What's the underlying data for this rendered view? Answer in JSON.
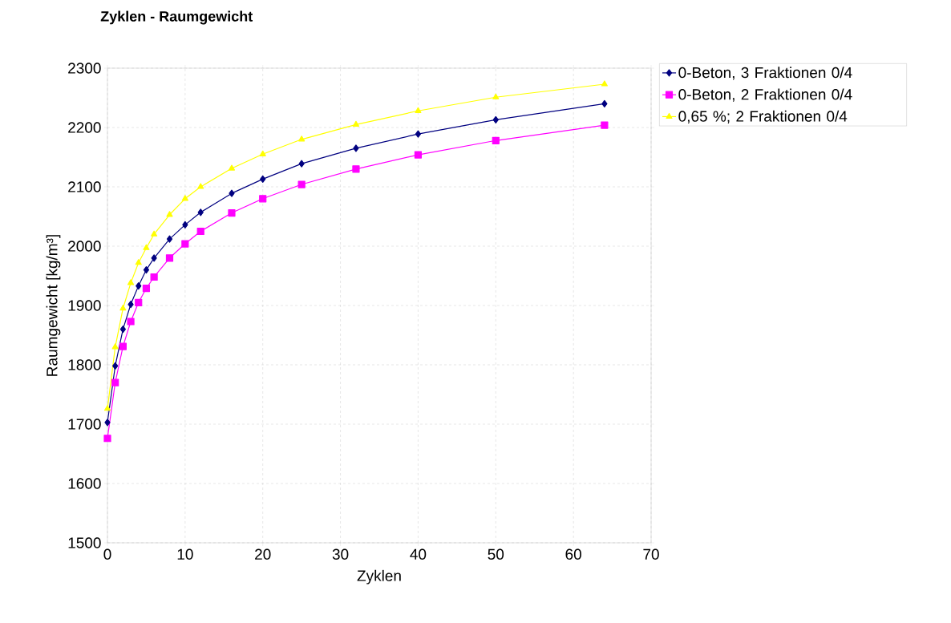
{
  "chart_data": {
    "type": "line",
    "title": "Zyklen - Raumgewicht",
    "xlabel": "Zyklen",
    "ylabel": "Raumgewicht [kg/m³]",
    "x": [
      0,
      1,
      2,
      3,
      4,
      5,
      6,
      8,
      10,
      12,
      16,
      20,
      25,
      32,
      40,
      50,
      64
    ],
    "series": [
      {
        "name": "0-Beton, 3 Fraktionen 0/4",
        "color": "#000080",
        "marker": "diamond",
        "values": [
          1703,
          1798,
          1860,
          1902,
          1933,
          1960,
          1980,
          2012,
          2036,
          2057,
          2089,
          2113,
          2139,
          2165,
          2189,
          2213,
          2240
        ]
      },
      {
        "name": "0-Beton, 2 Fraktionen 0/4",
        "color": "#ff00ff",
        "marker": "square",
        "values": [
          1676,
          1770,
          1831,
          1873,
          1905,
          1929,
          1948,
          1980,
          2004,
          2025,
          2056,
          2080,
          2104,
          2130,
          2154,
          2178,
          2204
        ]
      },
      {
        "name": "0,65 %; 2 Fraktionen 0/4",
        "color": "#ffff00",
        "marker": "triangle",
        "values": [
          1726,
          1830,
          1895,
          1938,
          1972,
          1997,
          2020,
          2053,
          2080,
          2100,
          2131,
          2155,
          2180,
          2205,
          2228,
          2251,
          2273
        ]
      }
    ],
    "xlim": [
      0,
      70
    ],
    "xticks": [
      0,
      10,
      20,
      30,
      40,
      50,
      60,
      70
    ],
    "ylim": [
      1500,
      2300
    ],
    "yticks": [
      1500,
      1600,
      1700,
      1800,
      1900,
      2000,
      2100,
      2200,
      2300
    ],
    "grid": true,
    "legend": "top right",
    "line_style": "solid"
  }
}
